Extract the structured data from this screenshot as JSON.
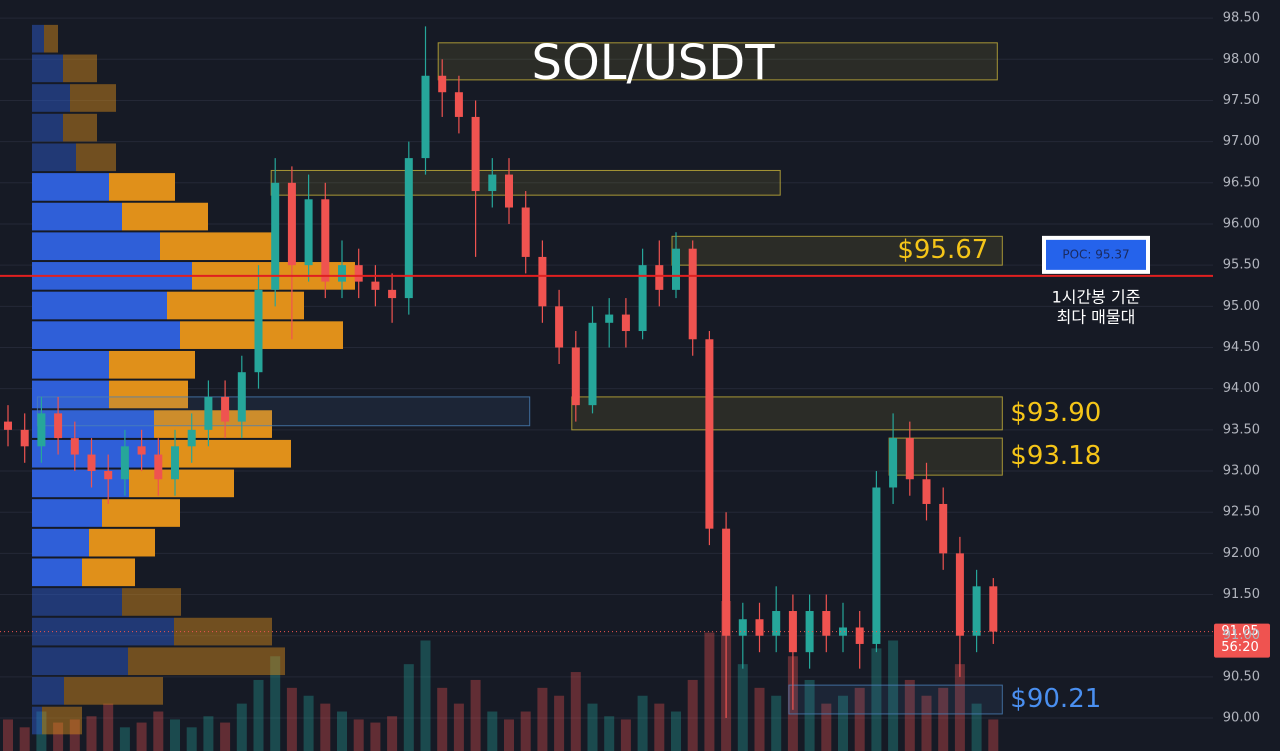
{
  "chart_data": {
    "type": "candlestick",
    "title": "SOL/USDT",
    "ylim": [
      89.6,
      98.72
    ],
    "yticks": [
      {
        "value": 98.5,
        "label": "98.50"
      },
      {
        "value": 98.0,
        "label": "98.00"
      },
      {
        "value": 97.5,
        "label": "97.50"
      },
      {
        "value": 97.0,
        "label": "97.00"
      },
      {
        "value": 96.5,
        "label": "96.50"
      },
      {
        "value": 96.0,
        "label": "96.00"
      },
      {
        "value": 95.5,
        "label": "95.50"
      },
      {
        "value": 95.0,
        "label": "95.00"
      },
      {
        "value": 94.5,
        "label": "94.50"
      },
      {
        "value": 94.0,
        "label": "94.00"
      },
      {
        "value": 93.5,
        "label": "93.50"
      },
      {
        "value": 93.0,
        "label": "93.00"
      },
      {
        "value": 92.5,
        "label": "92.50"
      },
      {
        "value": 92.0,
        "label": "92.00"
      },
      {
        "value": 91.5,
        "label": "91.50"
      },
      {
        "value": 91.0,
        "label": "91.00"
      },
      {
        "value": 90.5,
        "label": "90.50"
      },
      {
        "value": 90.0,
        "label": "90.00"
      }
    ],
    "grid": true,
    "up_color": "#26a69a",
    "down_color": "#ef5350",
    "open": [
      93.6,
      93.5,
      93.3,
      93.7,
      93.4,
      93.2,
      93.0,
      92.9,
      93.3,
      93.2,
      92.9,
      93.3,
      93.5,
      93.9,
      93.6,
      94.2,
      95.2,
      96.5,
      95.5,
      96.3,
      95.3,
      95.5,
      95.3,
      95.2,
      95.1,
      96.8,
      97.8,
      97.6,
      97.3,
      96.4,
      96.6,
      96.2,
      95.6,
      95.0,
      94.5,
      93.8,
      94.8,
      94.9,
      94.7,
      95.5,
      95.2,
      95.7,
      94.6,
      92.3,
      91.0,
      91.2,
      91.0,
      91.3,
      90.8,
      91.3,
      91.0,
      91.1,
      90.9,
      92.8,
      93.4,
      92.9,
      92.6,
      92.0,
      91.0,
      91.6
    ],
    "high": [
      93.8,
      93.7,
      93.9,
      93.9,
      93.6,
      93.4,
      93.2,
      93.5,
      93.5,
      93.4,
      93.5,
      93.7,
      94.1,
      94.1,
      94.4,
      95.5,
      96.8,
      96.7,
      96.6,
      96.5,
      95.8,
      95.7,
      95.5,
      95.4,
      97.0,
      98.4,
      98.0,
      97.8,
      97.5,
      96.8,
      96.8,
      96.4,
      95.8,
      95.2,
      94.7,
      95.0,
      95.1,
      95.1,
      95.7,
      95.8,
      95.9,
      95.8,
      94.7,
      92.5,
      91.4,
      91.4,
      91.6,
      91.5,
      91.5,
      91.5,
      91.4,
      91.3,
      93.0,
      93.7,
      93.6,
      93.1,
      92.8,
      92.2,
      91.8,
      91.7
    ],
    "low": [
      93.3,
      93.1,
      93.1,
      93.2,
      93.0,
      92.8,
      92.6,
      92.7,
      93.0,
      92.7,
      92.7,
      93.1,
      93.3,
      93.4,
      93.4,
      94.0,
      95.0,
      94.6,
      95.3,
      95.1,
      95.1,
      95.1,
      95.0,
      94.8,
      94.9,
      96.6,
      97.3,
      97.1,
      95.6,
      96.2,
      96.0,
      95.4,
      94.8,
      94.3,
      93.6,
      93.7,
      94.5,
      94.5,
      94.6,
      95.0,
      95.1,
      94.4,
      92.1,
      90.0,
      90.6,
      90.8,
      90.8,
      90.1,
      90.6,
      90.8,
      90.8,
      90.6,
      90.8,
      92.6,
      92.7,
      92.4,
      91.8,
      90.5,
      90.8,
      90.9
    ],
    "close": [
      93.5,
      93.3,
      93.7,
      93.4,
      93.2,
      93.0,
      92.9,
      93.3,
      93.2,
      92.9,
      93.3,
      93.5,
      93.9,
      93.6,
      94.2,
      95.2,
      96.5,
      95.5,
      96.3,
      95.3,
      95.5,
      95.3,
      95.2,
      95.1,
      96.8,
      97.8,
      97.6,
      97.3,
      96.4,
      96.6,
      96.2,
      95.6,
      95.0,
      94.5,
      93.8,
      94.8,
      94.9,
      94.7,
      95.5,
      95.2,
      95.7,
      94.6,
      92.3,
      91.0,
      91.2,
      91.0,
      91.3,
      90.8,
      91.3,
      91.0,
      91.1,
      90.9,
      92.8,
      93.4,
      92.9,
      92.6,
      92.0,
      91.0,
      91.6,
      91.05
    ],
    "volume": [
      20,
      15,
      25,
      18,
      20,
      22,
      30,
      15,
      18,
      25,
      20,
      15,
      22,
      18,
      30,
      45,
      60,
      40,
      35,
      30,
      25,
      20,
      18,
      22,
      55,
      70,
      40,
      30,
      45,
      25,
      20,
      25,
      40,
      35,
      50,
      30,
      22,
      20,
      35,
      30,
      25,
      45,
      75,
      95,
      55,
      40,
      35,
      60,
      45,
      30,
      35,
      40,
      65,
      70,
      45,
      35,
      40,
      55,
      30,
      20
    ],
    "volume_profile": {
      "prices": [
        98.25,
        97.89,
        97.53,
        97.17,
        96.81,
        96.45,
        96.09,
        95.73,
        95.37,
        95.01,
        94.65,
        94.29,
        93.93,
        93.57,
        93.21,
        92.85,
        92.49,
        92.13,
        91.77,
        91.41,
        91.05,
        90.69,
        90.33,
        89.97
      ],
      "buy": [
        12,
        31,
        38,
        31,
        44,
        77,
        90,
        128,
        160,
        135,
        148,
        77,
        77,
        122,
        128,
        97,
        70,
        57,
        50,
        90,
        142,
        96,
        32,
        10
      ],
      "sell": [
        14,
        34,
        46,
        34,
        40,
        66,
        86,
        119,
        163,
        137,
        163,
        86,
        79,
        118,
        131,
        105,
        78,
        66,
        53,
        59,
        98,
        157,
        99,
        40
      ],
      "value_area": [
        91.6,
        96.6
      ],
      "buy_color": "#2f5fd8",
      "sell_color": "#e0901a"
    },
    "zones": [
      {
        "high": 98.2,
        "low": 97.75,
        "start": 26,
        "end": 59,
        "color": "#c9b43a"
      },
      {
        "high": 96.65,
        "low": 96.35,
        "start": 16,
        "end": 46,
        "color": "#c9b43a"
      },
      {
        "high": 95.85,
        "low": 95.5,
        "start": 40,
        "end": 59.3,
        "color": "#c9b43a",
        "label": "$95.67",
        "label_color": "#f5c518",
        "label_inside": true
      },
      {
        "high": 93.9,
        "low": 93.5,
        "start": 34,
        "end": 59.3,
        "color": "#c9b43a",
        "label": "$93.90",
        "label_color": "#f5c518"
      },
      {
        "high": 93.4,
        "low": 92.95,
        "start": 53,
        "end": 59.3,
        "color": "#c9b43a",
        "label": "$93.18",
        "label_color": "#f5c518"
      },
      {
        "high": 90.4,
        "low": 90.05,
        "start": 47,
        "end": 59.3,
        "color": "#4a7fb8",
        "label": "$90.21",
        "label_color": "#4a8ff0"
      },
      {
        "high": 93.9,
        "low": 93.55,
        "start": 2,
        "end": 31,
        "color": "#4a7fb8"
      }
    ],
    "poc": {
      "value": 95.37,
      "label": "POC: 95.37",
      "note": [
        "1시간봉 기준",
        "최다 매물대"
      ],
      "color": "#e02020"
    },
    "last_price": 91.05,
    "countdown": "56:20"
  }
}
